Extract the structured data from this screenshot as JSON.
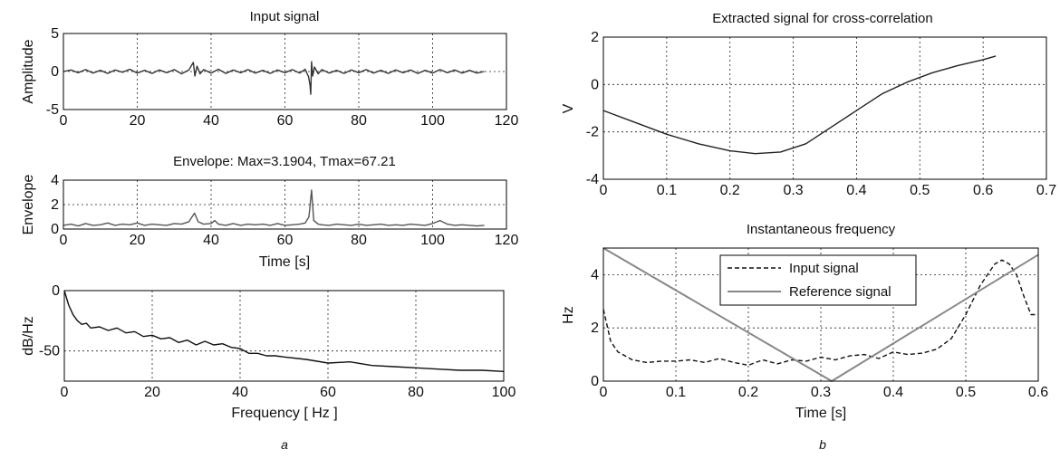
{
  "panel_labels": {
    "left": "a",
    "right": "b"
  },
  "chart_data": [
    {
      "id": "input",
      "type": "line",
      "title": "Input signal",
      "xlabel": "",
      "ylabel": "Amplitude",
      "xlim": [
        0,
        120
      ],
      "ylim": [
        -5,
        5
      ],
      "xticks": [
        0,
        20,
        40,
        60,
        80,
        100,
        120
      ],
      "yticks": [
        -5,
        0,
        5
      ],
      "grid": true,
      "series": [
        {
          "color": "#333333",
          "x": [
            0,
            2,
            4,
            6,
            8,
            10,
            12,
            14,
            16,
            18,
            20,
            22,
            24,
            26,
            28,
            30,
            32,
            34,
            35.2,
            35.6,
            36.2,
            37,
            38,
            40,
            42,
            44,
            46,
            48,
            50,
            52,
            54,
            56,
            58,
            60,
            62,
            64,
            65.5,
            66.4,
            66.8,
            67.0,
            67.21,
            67.5,
            68,
            69,
            70,
            72,
            74,
            76,
            78,
            80,
            82,
            84,
            86,
            88,
            90,
            92,
            94,
            96,
            98,
            100,
            102,
            104,
            106,
            108,
            110,
            112,
            114
          ],
          "y": [
            0,
            0.2,
            -0.15,
            0.25,
            -0.2,
            0.15,
            -0.25,
            0.2,
            -0.1,
            0.3,
            -0.2,
            0.15,
            -0.25,
            0.2,
            -0.15,
            0.25,
            -0.3,
            0.2,
            1.2,
            -0.6,
            0.7,
            -0.3,
            0.25,
            -0.2,
            0.3,
            -0.25,
            0.2,
            -0.15,
            0.25,
            -0.2,
            0.15,
            -0.25,
            0.2,
            -0.15,
            0.25,
            -0.2,
            0.3,
            -0.7,
            -1.8,
            -3.0,
            1.3,
            -0.6,
            0.6,
            -0.3,
            0.25,
            -0.2,
            0.15,
            -0.25,
            0.2,
            -0.15,
            0.25,
            -0.2,
            0.15,
            -0.25,
            0.2,
            -0.15,
            0.2,
            -0.25,
            0.15,
            -0.2,
            0.25,
            -0.15,
            0.2,
            -0.2,
            0.15,
            -0.2,
            0
          ]
        }
      ]
    },
    {
      "id": "envelope",
      "type": "line",
      "title": "Envelope: Max=3.1904, Tmax=67.21",
      "xlabel": "Time [s]",
      "ylabel": "Envelope",
      "xlim": [
        0,
        120
      ],
      "ylim": [
        0,
        4
      ],
      "xticks": [
        0,
        20,
        40,
        60,
        80,
        100,
        120
      ],
      "yticks": [
        0,
        2,
        4
      ],
      "grid": true,
      "series": [
        {
          "color": "#555555",
          "x": [
            0,
            2,
            4,
            6,
            8,
            10,
            12,
            14,
            16,
            18,
            20,
            22,
            24,
            26,
            28,
            30,
            32,
            34,
            35.5,
            36.5,
            38,
            40,
            41,
            42,
            44,
            46,
            48,
            50,
            52,
            54,
            56,
            58,
            60,
            62,
            64,
            65.5,
            66.5,
            67.21,
            67.8,
            69,
            70,
            72,
            74,
            76,
            78,
            80,
            82,
            84,
            86,
            88,
            90,
            92,
            94,
            96,
            98,
            100,
            102,
            104,
            106,
            108,
            110,
            112,
            114
          ],
          "y": [
            0.3,
            0.4,
            0.25,
            0.45,
            0.3,
            0.35,
            0.5,
            0.3,
            0.4,
            0.35,
            0.5,
            0.3,
            0.4,
            0.35,
            0.3,
            0.45,
            0.4,
            0.6,
            1.3,
            0.6,
            0.4,
            0.45,
            0.7,
            0.4,
            0.3,
            0.45,
            0.3,
            0.4,
            0.35,
            0.4,
            0.3,
            0.45,
            0.3,
            0.35,
            0.4,
            0.5,
            1.0,
            3.19,
            0.7,
            0.4,
            0.35,
            0.3,
            0.4,
            0.35,
            0.3,
            0.4,
            0.3,
            0.35,
            0.4,
            0.3,
            0.35,
            0.3,
            0.4,
            0.35,
            0.3,
            0.45,
            0.7,
            0.4,
            0.3,
            0.35,
            0.3,
            0.25,
            0.3
          ]
        }
      ]
    },
    {
      "id": "spectrum",
      "type": "line",
      "title": "",
      "xlabel": "Frequency [ Hz ]",
      "ylabel": "dB/Hz",
      "xlim": [
        0,
        100
      ],
      "ylim": [
        -75,
        0
      ],
      "xticks": [
        0,
        20,
        40,
        60,
        80,
        100
      ],
      "yticks": [
        -50,
        0
      ],
      "grid": true,
      "series": [
        {
          "color": "#111111",
          "x": [
            0,
            0.5,
            1,
            2,
            3,
            4,
            5,
            6,
            8,
            10,
            12,
            14,
            16,
            18,
            20,
            22,
            24,
            26,
            28,
            30,
            32,
            34,
            36,
            38,
            40,
            42,
            44,
            46,
            48,
            50,
            55,
            60,
            65,
            70,
            75,
            80,
            85,
            90,
            95,
            100
          ],
          "y": [
            0,
            -6,
            -12,
            -20,
            -25,
            -28,
            -27,
            -31,
            -30,
            -33,
            -31,
            -35,
            -34,
            -38,
            -37,
            -40,
            -39,
            -43,
            -41,
            -45,
            -42,
            -45,
            -44,
            -47,
            -48,
            -52,
            -52,
            -54,
            -54,
            -55,
            -57,
            -60,
            -59,
            -62,
            -63,
            -64,
            -65,
            -66,
            -66,
            -67
          ]
        }
      ]
    },
    {
      "id": "extracted",
      "type": "line",
      "title": "Extracted signal for cross-correlation",
      "xlabel": "",
      "ylabel": "V",
      "xlim": [
        0,
        0.7
      ],
      "ylim": [
        -4,
        2
      ],
      "xticks": [
        0,
        0.1,
        0.2,
        0.3,
        0.4,
        0.5,
        0.6,
        0.7
      ],
      "yticks": [
        -4,
        -2,
        0,
        2
      ],
      "grid": true,
      "series": [
        {
          "color": "#222222",
          "x": [
            0,
            0.05,
            0.1,
            0.15,
            0.2,
            0.24,
            0.28,
            0.32,
            0.36,
            0.4,
            0.44,
            0.48,
            0.52,
            0.56,
            0.6,
            0.62
          ],
          "y": [
            -1.1,
            -1.6,
            -2.1,
            -2.5,
            -2.8,
            -2.92,
            -2.85,
            -2.5,
            -1.8,
            -1.1,
            -0.4,
            0.1,
            0.5,
            0.8,
            1.05,
            1.2
          ]
        }
      ]
    },
    {
      "id": "instfreq",
      "type": "line",
      "title": "Instantaneous frequency",
      "xlabel": "Time [s]",
      "ylabel": "Hz",
      "xlim": [
        0,
        0.6
      ],
      "ylim": [
        0,
        5
      ],
      "xticks": [
        0,
        0.1,
        0.2,
        0.3,
        0.4,
        0.5,
        0.6
      ],
      "yticks": [
        0,
        2,
        4
      ],
      "grid": true,
      "legend": "top-center",
      "series": [
        {
          "name": "Input signal",
          "color": "#111111",
          "dash": "5,3",
          "x": [
            0,
            0.01,
            0.02,
            0.04,
            0.06,
            0.08,
            0.1,
            0.12,
            0.14,
            0.16,
            0.18,
            0.2,
            0.22,
            0.24,
            0.26,
            0.28,
            0.3,
            0.32,
            0.34,
            0.36,
            0.38,
            0.4,
            0.42,
            0.44,
            0.46,
            0.48,
            0.5,
            0.52,
            0.54,
            0.55,
            0.56,
            0.57,
            0.58,
            0.59,
            0.6
          ],
          "y": [
            2.7,
            1.5,
            1.1,
            0.8,
            0.7,
            0.75,
            0.75,
            0.8,
            0.7,
            0.85,
            0.7,
            0.6,
            0.8,
            0.65,
            0.8,
            0.75,
            0.9,
            0.8,
            0.95,
            1.0,
            0.85,
            1.1,
            1.0,
            1.05,
            1.2,
            1.6,
            2.5,
            3.6,
            4.4,
            4.55,
            4.4,
            4.0,
            3.2,
            2.5,
            2.5
          ]
        },
        {
          "name": "Reference signal",
          "color": "#888888",
          "dash": "",
          "x": [
            0,
            0.315,
            0.6
          ],
          "y": [
            5.0,
            0.0,
            4.75
          ]
        }
      ]
    }
  ]
}
